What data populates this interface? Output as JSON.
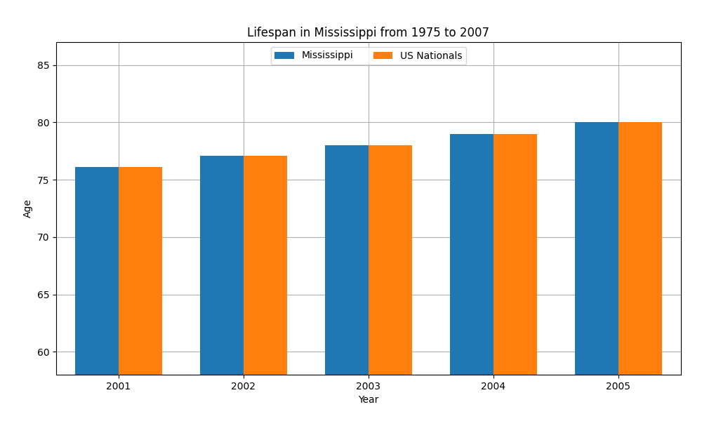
{
  "chart_data": {
    "type": "bar",
    "title": "Lifespan in Mississippi from 1975 to 2007",
    "x_label": "Year",
    "y_label": "Age",
    "categories": [
      "2001",
      "2002",
      "2003",
      "2004",
      "2005"
    ],
    "series": [
      {
        "name": "Mississippi",
        "values": [
          76.1,
          77.1,
          78.0,
          79.0,
          80.0
        ]
      },
      {
        "name": "US Nationals",
        "values": [
          76.1,
          77.1,
          78.0,
          79.0,
          80.0
        ]
      }
    ],
    "ylim": [
      58,
      87
    ],
    "yticks": [
      60,
      65,
      70,
      75,
      80,
      85
    ],
    "grid": true,
    "legend": "upper center"
  }
}
